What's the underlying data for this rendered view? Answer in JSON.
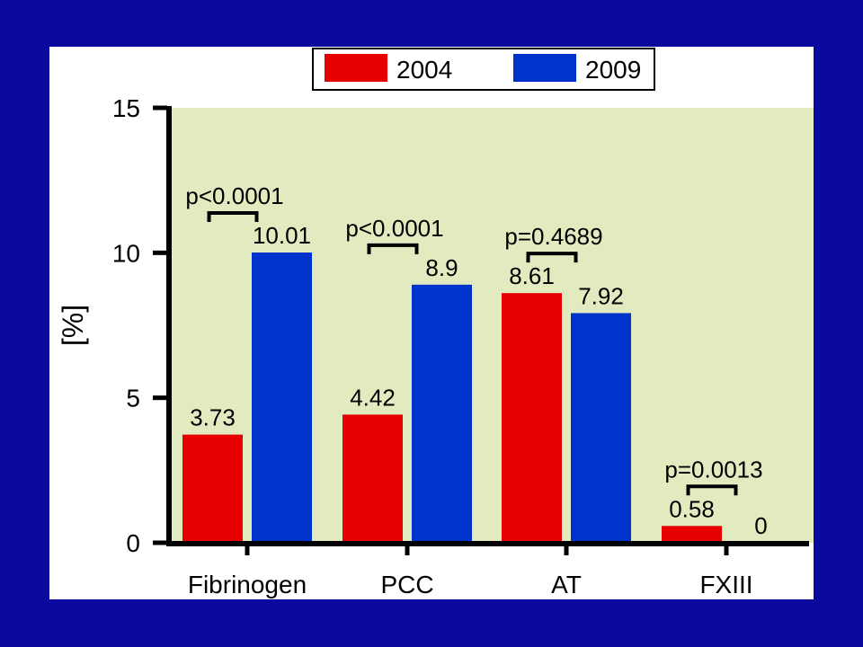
{
  "chart_data": {
    "type": "bar",
    "categories": [
      "Fibrinogen",
      "PCC",
      "AT",
      "FXIII"
    ],
    "series": [
      {
        "name": "2004",
        "values": [
          3.73,
          4.42,
          8.61,
          0.58
        ],
        "color": "#e60000"
      },
      {
        "name": "2009",
        "values": [
          10.01,
          8.9,
          7.92,
          0
        ],
        "color": "#0033cc"
      }
    ],
    "data_labels": [
      [
        "3.73",
        "10.01"
      ],
      [
        "4.42",
        "8.9"
      ],
      [
        "8.61",
        "7.92"
      ],
      [
        "0.58",
        "0"
      ]
    ],
    "p_values": [
      "p<0.0001",
      "p<0.0001",
      "p=0.4689",
      "p=0.0013"
    ],
    "ylabel": "[%]",
    "ylim": [
      0,
      15
    ],
    "yticks": [
      "0",
      "5",
      "10",
      "15"
    ],
    "legend": {
      "position": "top",
      "labels": [
        "2004",
        "2009"
      ]
    },
    "plot_background": "#e1ebbf",
    "frame_background": "#0a0a9e"
  }
}
